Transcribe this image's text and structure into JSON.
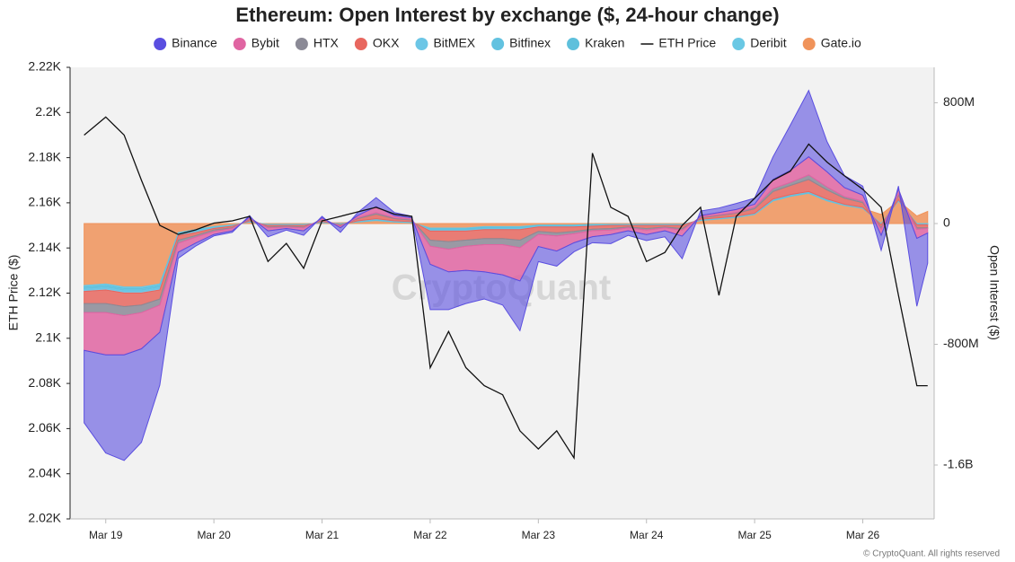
{
  "chart_data": {
    "type": "area",
    "stacked": true,
    "title": "Ethereum: Open Interest by exchange ($, 24-hour change)",
    "ylabel": "ETH Price ($)",
    "y2label": "Open Interest ($)",
    "watermark": "CryptoQuant",
    "footer": "© CryptoQuant. All rights reserved",
    "x": [
      18.8,
      19.0,
      19.17,
      19.33,
      19.5,
      19.67,
      19.83,
      20.0,
      20.17,
      20.33,
      20.5,
      20.67,
      20.83,
      21.0,
      21.17,
      21.33,
      21.5,
      21.67,
      21.83,
      22.0,
      22.17,
      22.33,
      22.5,
      22.67,
      22.83,
      23.0,
      23.17,
      23.33,
      23.5,
      23.67,
      23.83,
      24.0,
      24.17,
      24.33,
      24.5,
      24.67,
      24.83,
      25.0,
      25.17,
      25.33,
      25.5,
      25.67,
      25.83,
      26.0,
      26.17,
      26.33,
      26.5,
      26.6
    ],
    "xlim": [
      18.67,
      26.66
    ],
    "xticks": [
      {
        "value": 19,
        "label": "Mar 19"
      },
      {
        "value": 20,
        "label": "Mar 20"
      },
      {
        "value": 21,
        "label": "Mar 21"
      },
      {
        "value": 22,
        "label": "Mar 22"
      },
      {
        "value": 23,
        "label": "Mar 23"
      },
      {
        "value": 24,
        "label": "Mar 24"
      },
      {
        "value": 25,
        "label": "Mar 25"
      },
      {
        "value": 26,
        "label": "Mar 26"
      }
    ],
    "ylim": [
      2020,
      2220
    ],
    "yticks": [
      {
        "value": 2020,
        "label": "2.02K"
      },
      {
        "value": 2040,
        "label": "2.04K"
      },
      {
        "value": 2060,
        "label": "2.06K"
      },
      {
        "value": 2080,
        "label": "2.08K"
      },
      {
        "value": 2100,
        "label": "2.1K"
      },
      {
        "value": 2120,
        "label": "2.12K"
      },
      {
        "value": 2140,
        "label": "2.14K"
      },
      {
        "value": 2160,
        "label": "2.16K"
      },
      {
        "value": 2180,
        "label": "2.18K"
      },
      {
        "value": 2200,
        "label": "2.2K"
      },
      {
        "value": 2220,
        "label": "2.22K"
      }
    ],
    "y2lim": [
      -1957,
      1035
    ],
    "y2ticks": [
      {
        "value": -1600,
        "label": "-1.6B"
      },
      {
        "value": -800,
        "label": "-800M"
      },
      0,
      {
        "value": 800,
        "label": "800M"
      }
    ],
    "series": [
      {
        "name": "Binance",
        "color": "#5a4ee0",
        "axis": "y2",
        "values": [
          -480,
          -650,
          -700,
          -620,
          -350,
          -40,
          -20,
          -10,
          -10,
          10,
          -40,
          -10,
          -30,
          10,
          -30,
          20,
          60,
          20,
          10,
          -300,
          -250,
          -220,
          -180,
          -200,
          -330,
          -100,
          -100,
          -60,
          -40,
          -60,
          -30,
          -40,
          -40,
          -150,
          30,
          30,
          40,
          40,
          150,
          300,
          440,
          200,
          80,
          60,
          -100,
          20,
          -450,
          -200
        ]
      },
      {
        "name": "Bybit",
        "color": "#e065a2",
        "axis": "y2",
        "values": [
          -250,
          -280,
          -260,
          -240,
          -180,
          -60,
          -40,
          -20,
          -15,
          10,
          -20,
          -10,
          -20,
          10,
          -10,
          15,
          40,
          15,
          10,
          -120,
          -150,
          -160,
          -180,
          -200,
          -220,
          -80,
          -100,
          -60,
          -40,
          -30,
          -20,
          -30,
          -20,
          -40,
          10,
          15,
          20,
          20,
          60,
          80,
          120,
          100,
          60,
          40,
          -40,
          30,
          -60,
          -30
        ]
      },
      {
        "name": "HTX",
        "color": "#8b8a96",
        "axis": "y2",
        "values": [
          -60,
          -60,
          -60,
          -50,
          -40,
          -20,
          -10,
          -10,
          -5,
          5,
          -5,
          -5,
          -5,
          5,
          -5,
          5,
          10,
          5,
          5,
          -40,
          -50,
          -40,
          -40,
          -40,
          -50,
          -20,
          -20,
          -15,
          -10,
          -10,
          -5,
          -10,
          -5,
          -10,
          5,
          5,
          5,
          10,
          20,
          20,
          30,
          20,
          10,
          10,
          -10,
          10,
          -10,
          -5
        ]
      },
      {
        "name": "OKX",
        "color": "#e8675f",
        "axis": "y2",
        "values": [
          -80,
          -90,
          -90,
          -80,
          -60,
          -30,
          -20,
          -10,
          -10,
          10,
          -10,
          -5,
          -10,
          10,
          -5,
          15,
          30,
          15,
          10,
          -60,
          -70,
          -60,
          -60,
          -60,
          -70,
          -30,
          -40,
          -30,
          -20,
          -20,
          -10,
          -20,
          -10,
          -20,
          10,
          15,
          20,
          30,
          50,
          60,
          80,
          60,
          40,
          30,
          -20,
          30,
          -20,
          -20
        ]
      },
      {
        "name": "BitMEX",
        "color": "#6cc6e6",
        "axis": "y2",
        "values": [
          -10,
          -10,
          -10,
          -10,
          -10,
          -5,
          -5,
          -3,
          -2,
          2,
          -2,
          -2,
          -2,
          2,
          -2,
          2,
          3,
          2,
          2,
          -5,
          -5,
          -5,
          -5,
          -5,
          -5,
          -3,
          -3,
          -3,
          -3,
          -2,
          -2,
          -2,
          -2,
          -2,
          2,
          2,
          2,
          2,
          3,
          3,
          3,
          3,
          2,
          2,
          -2,
          2,
          -2,
          -2
        ]
      },
      {
        "name": "Bitfinex",
        "color": "#62c2e0",
        "axis": "y2",
        "values": [
          -10,
          -10,
          -10,
          -10,
          -10,
          -5,
          -5,
          -3,
          -2,
          2,
          -2,
          -2,
          -2,
          2,
          -2,
          2,
          3,
          2,
          2,
          -5,
          -5,
          -5,
          -5,
          -5,
          -5,
          -3,
          -3,
          -3,
          -3,
          -2,
          -2,
          -2,
          -2,
          -2,
          2,
          2,
          2,
          2,
          3,
          3,
          3,
          3,
          2,
          2,
          -2,
          2,
          -2,
          -2
        ]
      },
      {
        "name": "Kraken",
        "color": "#5ec0dc",
        "axis": "y2",
        "values": [
          -10,
          -10,
          -10,
          -10,
          -10,
          -5,
          -5,
          -3,
          -2,
          2,
          -2,
          -2,
          -2,
          2,
          -2,
          2,
          3,
          2,
          2,
          -5,
          -5,
          -5,
          -5,
          -5,
          -5,
          -3,
          -3,
          -3,
          -3,
          -2,
          -2,
          -2,
          -2,
          -2,
          2,
          2,
          2,
          2,
          3,
          3,
          3,
          3,
          2,
          2,
          -2,
          2,
          -2,
          -2
        ]
      },
      {
        "name": "ETH Price",
        "color": "#111111",
        "type": "line",
        "values": [
          2190,
          2198,
          2190,
          2170,
          2150,
          2146,
          2148,
          2151,
          2152,
          2154,
          2134,
          2142,
          2131,
          2152,
          2154,
          2156,
          2158,
          2155,
          2154,
          2087,
          2103,
          2087,
          2079,
          2075,
          2059,
          2051,
          2059,
          2047,
          2182,
          2158,
          2154,
          2134,
          2138,
          2150,
          2158,
          2119,
          2154,
          2162,
          2170,
          2174,
          2186,
          2178,
          2172,
          2166,
          2158,
          2119,
          2079,
          2079
        ]
      },
      {
        "name": "Deribit",
        "color": "#6ac8e4",
        "axis": "y2",
        "values": [
          -10,
          -10,
          -10,
          -10,
          -10,
          -5,
          -5,
          -3,
          -2,
          2,
          -2,
          -2,
          -2,
          2,
          -2,
          2,
          3,
          2,
          2,
          -5,
          -5,
          -5,
          -5,
          -5,
          -5,
          -3,
          -3,
          -3,
          -3,
          -2,
          -2,
          -2,
          -2,
          -2,
          2,
          2,
          2,
          2,
          3,
          3,
          3,
          3,
          2,
          2,
          -2,
          2,
          -2,
          -2
        ]
      },
      {
        "name": "Gate.io",
        "color": "#f0935a",
        "axis": "y2",
        "values": [
          -410,
          -400,
          -420,
          -420,
          -400,
          -60,
          -40,
          -20,
          -10,
          10,
          -5,
          -5,
          -5,
          5,
          5,
          10,
          20,
          10,
          5,
          -30,
          -30,
          -30,
          -20,
          -20,
          -20,
          -10,
          -10,
          -10,
          -5,
          -5,
          -5,
          -5,
          -5,
          -5,
          20,
          30,
          40,
          60,
          150,
          180,
          200,
          150,
          120,
          100,
          60,
          150,
          50,
          80
        ]
      }
    ]
  }
}
